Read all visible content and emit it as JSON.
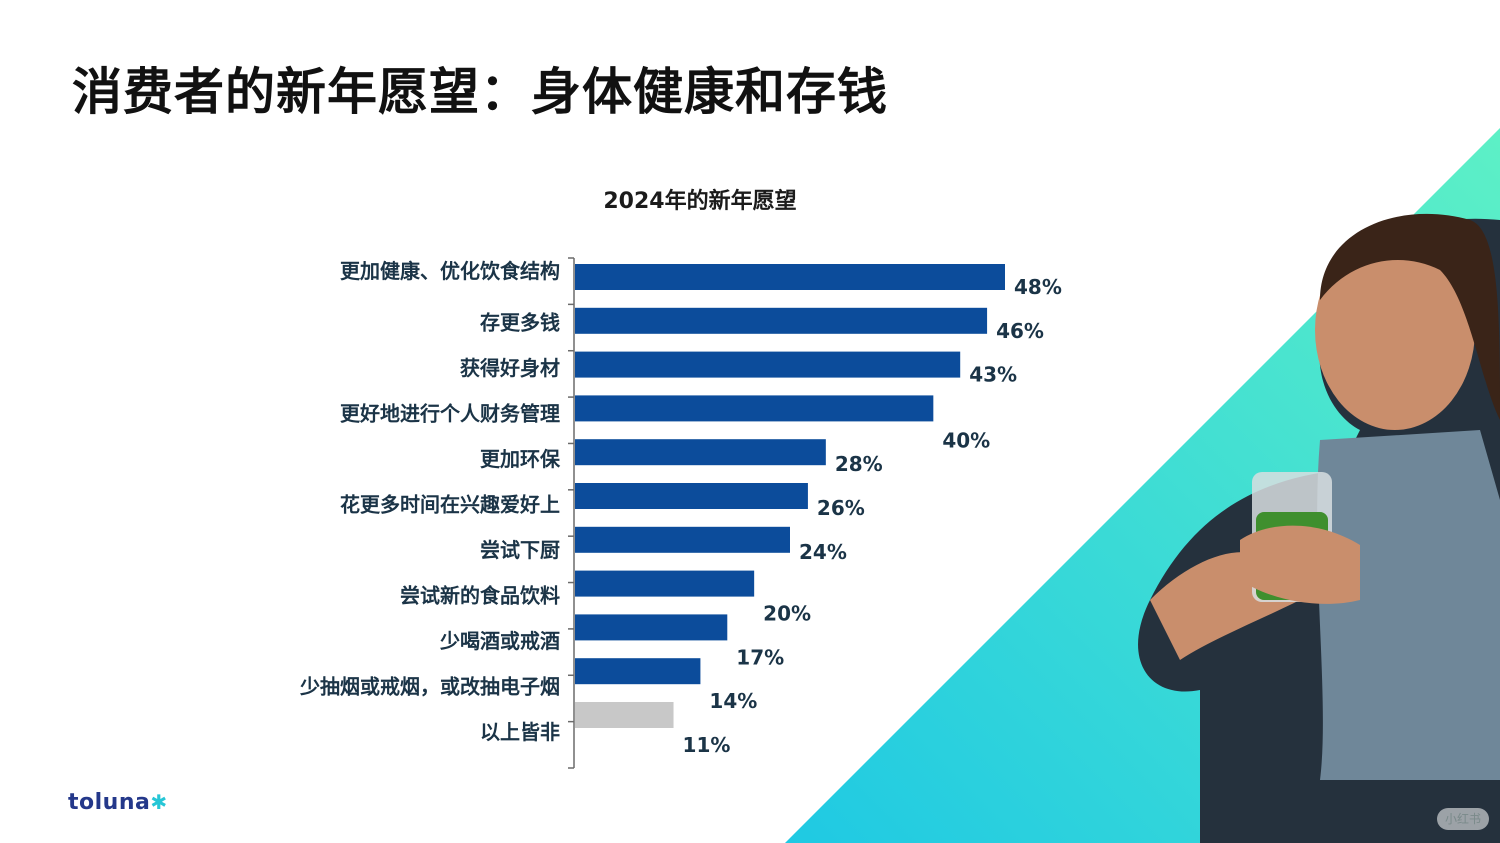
{
  "page": {
    "title": "消费者的新年愿望：身体健康和存钱"
  },
  "brand": {
    "name": "toluna",
    "star": "✱"
  },
  "watermark": {
    "text": "小红书"
  },
  "colors": {
    "bar_primary": "#0c4c9b",
    "bar_muted": "#c8c8c8",
    "label_text": "#1b3447",
    "teal_light": "#5df0c6",
    "teal_dark": "#1fc9e3"
  },
  "photo": {
    "icon": "woman-holding-green-smoothie-photo"
  },
  "chart_data": {
    "type": "bar",
    "orientation": "horizontal",
    "title": "2024年的新年愿望",
    "xlim": [
      0,
      50
    ],
    "grid": false,
    "legend": "none",
    "categories": [
      "更加健康、优化饮食结构",
      "存更多钱",
      "获得好身材",
      "更好地进行个人财务管理",
      "更加环保",
      "花更多时间在兴趣爱好上",
      "尝试下厨",
      "尝试新的食品饮料",
      "少喝酒或戒酒",
      "少抽烟或戒烟，或改抽电子烟",
      "以上皆非"
    ],
    "values": [
      48,
      46,
      43,
      40,
      28,
      26,
      24,
      20,
      17,
      14,
      11
    ],
    "value_labels": [
      "48%",
      "46%",
      "43%",
      "40%",
      "28%",
      "26%",
      "24%",
      "20%",
      "17%",
      "14%",
      "11%"
    ],
    "highlight": [
      true,
      true,
      true,
      true,
      true,
      true,
      true,
      true,
      true,
      true,
      false
    ]
  }
}
